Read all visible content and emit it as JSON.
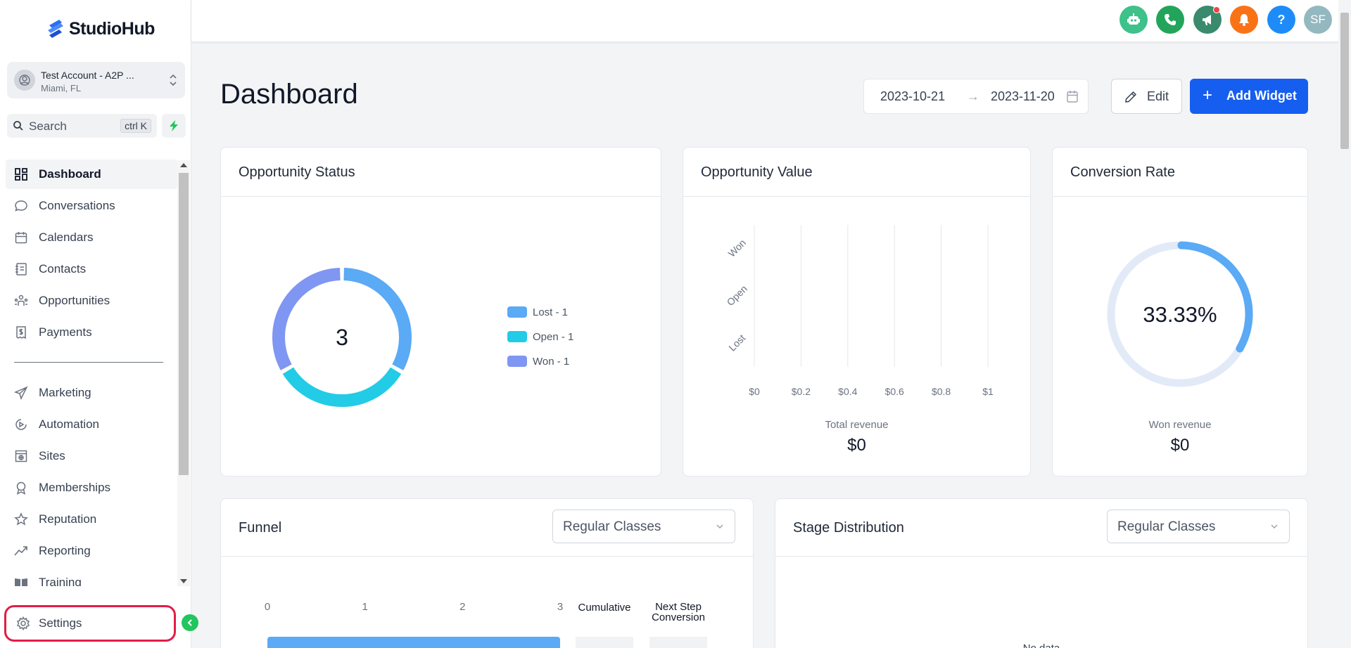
{
  "app": {
    "name": "StudioHub"
  },
  "account": {
    "name": "Test Account - A2P ...",
    "location": "Miami, FL"
  },
  "search": {
    "label": "Search",
    "shortcut": "ctrl K"
  },
  "nav": {
    "primary": [
      {
        "id": "dashboard",
        "label": "Dashboard",
        "icon": "dashboard-grid-icon",
        "active": true
      },
      {
        "id": "conversations",
        "label": "Conversations",
        "icon": "chat-bubble-icon"
      },
      {
        "id": "calendars",
        "label": "Calendars",
        "icon": "calendar-icon"
      },
      {
        "id": "contacts",
        "label": "Contacts",
        "icon": "contacts-book-icon"
      },
      {
        "id": "opportunities",
        "label": "Opportunities",
        "icon": "opportunities-icon"
      },
      {
        "id": "payments",
        "label": "Payments",
        "icon": "payments-receipt-icon"
      }
    ],
    "secondary": [
      {
        "id": "marketing",
        "label": "Marketing",
        "icon": "paper-plane-icon"
      },
      {
        "id": "automation",
        "label": "Automation",
        "icon": "automation-icon"
      },
      {
        "id": "sites",
        "label": "Sites",
        "icon": "sites-globe-icon"
      },
      {
        "id": "memberships",
        "label": "Memberships",
        "icon": "badge-icon"
      },
      {
        "id": "reputation",
        "label": "Reputation",
        "icon": "star-icon"
      },
      {
        "id": "reporting",
        "label": "Reporting",
        "icon": "trend-icon"
      },
      {
        "id": "training",
        "label": "Training",
        "icon": "book-icon"
      }
    ],
    "settings": {
      "label": "Settings",
      "icon": "gear-icon"
    }
  },
  "header": {
    "buttons": [
      {
        "name": "ai-assistant",
        "icon": "robot-icon",
        "color": "#3ec18a"
      },
      {
        "name": "phone",
        "icon": "phone-icon",
        "color": "#22a55a"
      },
      {
        "name": "announcements",
        "icon": "megaphone-icon",
        "color": "#3a8a6e",
        "badge": true
      },
      {
        "name": "notifications",
        "icon": "bell-icon",
        "color": "#f97316"
      },
      {
        "name": "help",
        "icon": "question-icon",
        "color": "#1d8cf8",
        "text": "?"
      },
      {
        "name": "profile",
        "icon": "avatar",
        "color": "#94b8c0",
        "text": "SF"
      }
    ]
  },
  "page": {
    "title": "Dashboard",
    "date_from": "2023-10-21",
    "date_arrow": "→",
    "date_to": "2023-11-20",
    "edit_label": "Edit",
    "add_widget_label": "Add Widget"
  },
  "widgets": {
    "opportunity_status": {
      "title": "Opportunity Status",
      "total": "3",
      "legend": [
        {
          "label": "Lost - 1",
          "color": "#5aaaf5"
        },
        {
          "label": "Open - 1",
          "color": "#22cbe6"
        },
        {
          "label": "Won - 1",
          "color": "#7f96f2"
        }
      ]
    },
    "opportunity_value": {
      "title": "Opportunity Value",
      "total_label": "Total revenue",
      "total_value": "$0"
    },
    "conversion_rate": {
      "title": "Conversion Rate",
      "value_label": "33.33%",
      "won_label": "Won revenue",
      "won_value": "$0"
    },
    "funnel": {
      "title": "Funnel",
      "pipeline": "Regular Classes",
      "col_cumulative": "Cumulative",
      "col_next_line1": "Next Step",
      "col_next_line2": "Conversion"
    },
    "stage_distribution": {
      "title": "Stage Distribution",
      "pipeline": "Regular Classes",
      "empty_text": "No data"
    }
  },
  "chart_data": [
    {
      "type": "pie",
      "title": "Opportunity Status",
      "categories": [
        "Lost",
        "Open",
        "Won"
      ],
      "values": [
        1,
        1,
        1
      ],
      "colors": [
        "#5aaaf5",
        "#22cbe6",
        "#7f96f2"
      ],
      "center_label": "3"
    },
    {
      "type": "bar",
      "title": "Opportunity Value",
      "orientation": "horizontal",
      "categories": [
        "Won",
        "Open",
        "Lost"
      ],
      "values": [
        0,
        0,
        0
      ],
      "xticks": [
        "$0",
        "$0.2",
        "$0.4",
        "$0.6",
        "$0.8",
        "$1"
      ],
      "xlim": [
        0,
        1
      ],
      "grid": true
    },
    {
      "type": "pie",
      "title": "Conversion Rate",
      "value_percent": 33.33,
      "colors": [
        "#5aaaf5",
        "#e3eaf7"
      ]
    },
    {
      "type": "bar",
      "title": "Funnel",
      "orientation": "horizontal",
      "xticks": [
        "0",
        "1",
        "2",
        "3"
      ],
      "xlim": [
        0,
        3
      ],
      "values": [
        3
      ]
    }
  ]
}
